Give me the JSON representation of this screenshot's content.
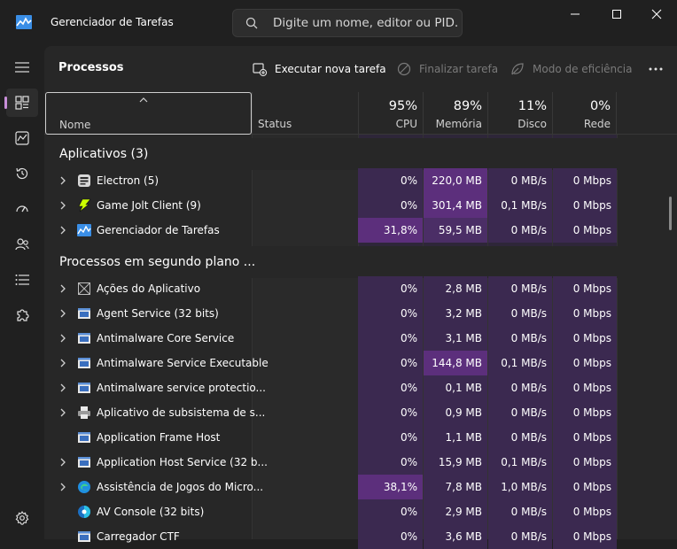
{
  "window": {
    "title": "Gerenciador de Tarefas"
  },
  "search": {
    "placeholder": "Digite um nome, editor ou PID..."
  },
  "page_title": "Processos",
  "toolbar": {
    "run_task": "Executar nova tarefa",
    "end_task": "Finalizar tarefa",
    "efficiency": "Modo de eficiência"
  },
  "columns": {
    "name": "Nome",
    "status": "Status",
    "cpu": {
      "pct": "95%",
      "label": "CPU"
    },
    "memory": {
      "pct": "89%",
      "label": "Memória"
    },
    "disk": {
      "pct": "11%",
      "label": "Disco"
    },
    "network": {
      "pct": "0%",
      "label": "Rede"
    }
  },
  "groups": {
    "apps": "Aplicativos (3)",
    "background": "Processos em segundo plano ..."
  },
  "apps": [
    {
      "name": "Electron (5)",
      "icon": "electron-icon",
      "cpu": "0%",
      "mem": "220,0 MB",
      "disk": "0 MB/s",
      "net": "0 Mbps"
    },
    {
      "name": "Game Jolt Client (9)",
      "icon": "game-jolt-icon",
      "cpu": "0%",
      "mem": "301,4 MB",
      "disk": "0,1 MB/s",
      "net": "0 Mbps"
    },
    {
      "name": "Gerenciador de Tarefas",
      "icon": "task-manager-icon",
      "cpu": "31,8%",
      "mem": "59,5 MB",
      "disk": "0 MB/s",
      "net": "0 Mbps"
    }
  ],
  "background": [
    {
      "name": "Ações do Aplicativo",
      "icon": "app-actions-icon",
      "cpu": "0%",
      "mem": "2,8 MB",
      "disk": "0 MB/s",
      "net": "0 Mbps"
    },
    {
      "name": "Agent Service (32 bits)",
      "icon": "service-window-icon",
      "cpu": "0%",
      "mem": "3,2 MB",
      "disk": "0 MB/s",
      "net": "0 Mbps"
    },
    {
      "name": "Antimalware Core Service",
      "icon": "service-window-icon",
      "cpu": "0%",
      "mem": "3,1 MB",
      "disk": "0 MB/s",
      "net": "0 Mbps"
    },
    {
      "name": "Antimalware Service Executable",
      "icon": "service-window-icon",
      "cpu": "0%",
      "mem": "144,8 MB",
      "disk": "0,1 MB/s",
      "net": "0 Mbps"
    },
    {
      "name": "Antimalware service protectio...",
      "icon": "service-window-icon",
      "cpu": "0%",
      "mem": "0,1 MB",
      "disk": "0 MB/s",
      "net": "0 Mbps"
    },
    {
      "name": "Aplicativo de subsistema de s...",
      "icon": "printer-icon",
      "cpu": "0%",
      "mem": "0,9 MB",
      "disk": "0 MB/s",
      "net": "0 Mbps"
    },
    {
      "name": "Application Frame Host",
      "icon": "service-window-icon",
      "cpu": "0%",
      "mem": "1,1 MB",
      "disk": "0 MB/s",
      "net": "0 Mbps"
    },
    {
      "name": "Application Host Service (32 b...",
      "icon": "service-window-icon",
      "cpu": "0%",
      "mem": "15,9 MB",
      "disk": "0,1 MB/s",
      "net": "0 Mbps"
    },
    {
      "name": "Assistência de Jogos do Micro...",
      "icon": "edge-icon",
      "cpu": "38,1%",
      "mem": "7,8 MB",
      "disk": "1,0 MB/s",
      "net": "0 Mbps"
    },
    {
      "name": "AV Console (32 bits)",
      "icon": "av-console-icon",
      "cpu": "0%",
      "mem": "2,9 MB",
      "disk": "0 MB/s",
      "net": "0 Mbps"
    },
    {
      "name": "Carregador CTF",
      "icon": "service-window-icon",
      "cpu": "0%",
      "mem": "3,6 MB",
      "disk": "0 MB/s",
      "net": "0 Mbps"
    }
  ]
}
